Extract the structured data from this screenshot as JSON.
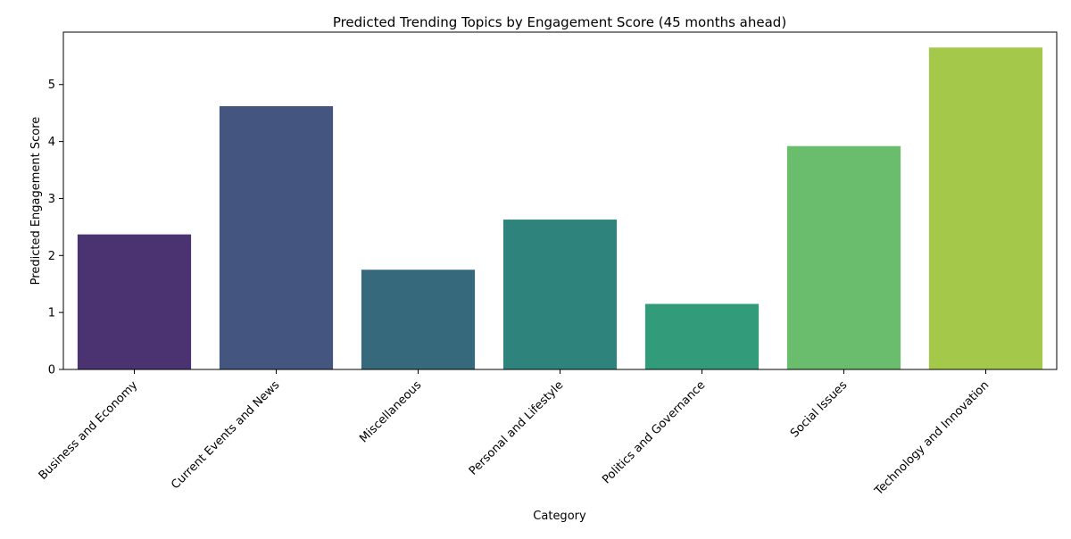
{
  "chart_data": {
    "type": "bar",
    "title": "Predicted Trending Topics by Engagement Score (45 months ahead)",
    "xlabel": "Category",
    "ylabel": "Predicted Engagement Score",
    "categories": [
      "Business and Economy",
      "Current Events and News",
      "Miscellaneous",
      "Personal and Lifestyle",
      "Politics and Governance",
      "Social Issues",
      "Technology and Innovation"
    ],
    "values": [
      2.37,
      4.62,
      1.75,
      2.63,
      1.15,
      3.92,
      5.65
    ],
    "colors": [
      "#4b3270",
      "#44557f",
      "#37697d",
      "#2e837d",
      "#329b7a",
      "#6abd6c",
      "#a3c84a"
    ],
    "ylim": [
      0,
      5.92
    ],
    "yticks": [
      0,
      1,
      2,
      3,
      4,
      5
    ],
    "grid": false,
    "legend": "none"
  }
}
